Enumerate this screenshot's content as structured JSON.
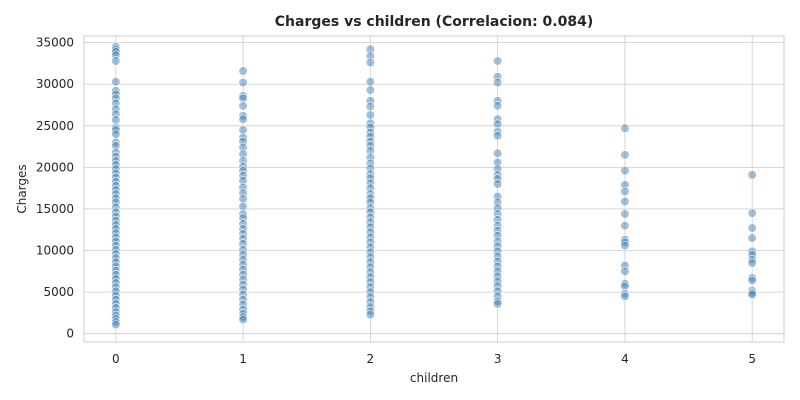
{
  "chart_data": {
    "type": "scatter",
    "title": "Charges vs children (Correlacion: 0.084)",
    "xlabel": "children",
    "ylabel": "Charges",
    "xlim": [
      -0.25,
      5.25
    ],
    "ylim": [
      -1000,
      35800
    ],
    "xticks": [
      0,
      1,
      2,
      3,
      4,
      5
    ],
    "yticks": [
      0,
      5000,
      10000,
      15000,
      20000,
      25000,
      30000,
      35000
    ],
    "grid": true,
    "point_color": "#4682b4",
    "series": [
      {
        "points": [
          [
            0,
            34500
          ],
          [
            0,
            34200
          ],
          [
            0,
            33900
          ],
          [
            0,
            33500
          ],
          [
            0,
            32800
          ],
          [
            0,
            30300
          ],
          [
            0,
            29200
          ],
          [
            0,
            28800
          ],
          [
            0,
            28300
          ],
          [
            0,
            27700
          ],
          [
            0,
            27000
          ],
          [
            0,
            26400
          ],
          [
            0,
            25700
          ],
          [
            0,
            24800
          ],
          [
            0,
            24500
          ],
          [
            0,
            24000
          ],
          [
            0,
            23000
          ],
          [
            0,
            22600
          ],
          [
            0,
            21800
          ],
          [
            0,
            21300
          ],
          [
            0,
            20800
          ],
          [
            0,
            20300
          ],
          [
            0,
            19800
          ],
          [
            0,
            19300
          ],
          [
            0,
            18800
          ],
          [
            0,
            18300
          ],
          [
            0,
            17800
          ],
          [
            0,
            17300
          ],
          [
            0,
            16800
          ],
          [
            0,
            16300
          ],
          [
            0,
            15800
          ],
          [
            0,
            15200
          ],
          [
            0,
            14600
          ],
          [
            0,
            14100
          ],
          [
            0,
            13600
          ],
          [
            0,
            13100
          ],
          [
            0,
            12600
          ],
          [
            0,
            12100
          ],
          [
            0,
            11600
          ],
          [
            0,
            11100
          ],
          [
            0,
            10600
          ],
          [
            0,
            10100
          ],
          [
            0,
            9600
          ],
          [
            0,
            9100
          ],
          [
            0,
            8600
          ],
          [
            0,
            8100
          ],
          [
            0,
            7600
          ],
          [
            0,
            7100
          ],
          [
            0,
            6600
          ],
          [
            0,
            6100
          ],
          [
            0,
            5600
          ],
          [
            0,
            5100
          ],
          [
            0,
            4600
          ],
          [
            0,
            4100
          ],
          [
            0,
            3600
          ],
          [
            0,
            3100
          ],
          [
            0,
            2600
          ],
          [
            0,
            2200
          ],
          [
            0,
            1800
          ],
          [
            0,
            1400
          ],
          [
            0,
            1100
          ],
          [
            1,
            31600
          ],
          [
            1,
            30200
          ],
          [
            1,
            28600
          ],
          [
            1,
            28300
          ],
          [
            1,
            27400
          ],
          [
            1,
            26200
          ],
          [
            1,
            25800
          ],
          [
            1,
            24500
          ],
          [
            1,
            23600
          ],
          [
            1,
            23100
          ],
          [
            1,
            22400
          ],
          [
            1,
            21600
          ],
          [
            1,
            20800
          ],
          [
            1,
            20100
          ],
          [
            1,
            19600
          ],
          [
            1,
            19000
          ],
          [
            1,
            18400
          ],
          [
            1,
            17600
          ],
          [
            1,
            16900
          ],
          [
            1,
            16200
          ],
          [
            1,
            15300
          ],
          [
            1,
            14400
          ],
          [
            1,
            13900
          ],
          [
            1,
            13200
          ],
          [
            1,
            12600
          ],
          [
            1,
            12000
          ],
          [
            1,
            11400
          ],
          [
            1,
            10800
          ],
          [
            1,
            10100
          ],
          [
            1,
            9500
          ],
          [
            1,
            8900
          ],
          [
            1,
            8300
          ],
          [
            1,
            7700
          ],
          [
            1,
            7100
          ],
          [
            1,
            6500
          ],
          [
            1,
            5900
          ],
          [
            1,
            5300
          ],
          [
            1,
            4700
          ],
          [
            1,
            4100
          ],
          [
            1,
            3500
          ],
          [
            1,
            2900
          ],
          [
            1,
            2400
          ],
          [
            1,
            2000
          ],
          [
            1,
            1700
          ],
          [
            2,
            34200
          ],
          [
            2,
            33400
          ],
          [
            2,
            32600
          ],
          [
            2,
            30300
          ],
          [
            2,
            29300
          ],
          [
            2,
            28000
          ],
          [
            2,
            27300
          ],
          [
            2,
            26300
          ],
          [
            2,
            25300
          ],
          [
            2,
            24800
          ],
          [
            2,
            24200
          ],
          [
            2,
            23700
          ],
          [
            2,
            23100
          ],
          [
            2,
            22600
          ],
          [
            2,
            22000
          ],
          [
            2,
            21200
          ],
          [
            2,
            20500
          ],
          [
            2,
            19900
          ],
          [
            2,
            19200
          ],
          [
            2,
            18700
          ],
          [
            2,
            18100
          ],
          [
            2,
            17500
          ],
          [
            2,
            16800
          ],
          [
            2,
            16300
          ],
          [
            2,
            15800
          ],
          [
            2,
            15100
          ],
          [
            2,
            14600
          ],
          [
            2,
            14000
          ],
          [
            2,
            13400
          ],
          [
            2,
            12800
          ],
          [
            2,
            12200
          ],
          [
            2,
            11600
          ],
          [
            2,
            11000
          ],
          [
            2,
            10400
          ],
          [
            2,
            9800
          ],
          [
            2,
            9200
          ],
          [
            2,
            8600
          ],
          [
            2,
            8000
          ],
          [
            2,
            7400
          ],
          [
            2,
            6800
          ],
          [
            2,
            6200
          ],
          [
            2,
            5600
          ],
          [
            2,
            5000
          ],
          [
            2,
            4400
          ],
          [
            2,
            3800
          ],
          [
            2,
            3200
          ],
          [
            2,
            2700
          ],
          [
            2,
            2300
          ],
          [
            3,
            32800
          ],
          [
            3,
            30900
          ],
          [
            3,
            30200
          ],
          [
            3,
            28000
          ],
          [
            3,
            27400
          ],
          [
            3,
            25800
          ],
          [
            3,
            25200
          ],
          [
            3,
            24300
          ],
          [
            3,
            23800
          ],
          [
            3,
            21700
          ],
          [
            3,
            20600
          ],
          [
            3,
            19800
          ],
          [
            3,
            19100
          ],
          [
            3,
            18600
          ],
          [
            3,
            18000
          ],
          [
            3,
            16500
          ],
          [
            3,
            15800
          ],
          [
            3,
            15100
          ],
          [
            3,
            14400
          ],
          [
            3,
            13700
          ],
          [
            3,
            13000
          ],
          [
            3,
            12400
          ],
          [
            3,
            11800
          ],
          [
            3,
            11100
          ],
          [
            3,
            10500
          ],
          [
            3,
            9900
          ],
          [
            3,
            9300
          ],
          [
            3,
            8700
          ],
          [
            3,
            8100
          ],
          [
            3,
            7500
          ],
          [
            3,
            6900
          ],
          [
            3,
            6300
          ],
          [
            3,
            5700
          ],
          [
            3,
            5100
          ],
          [
            3,
            4500
          ],
          [
            3,
            3900
          ],
          [
            3,
            3600
          ],
          [
            4,
            24700
          ],
          [
            4,
            21500
          ],
          [
            4,
            19600
          ],
          [
            4,
            17900
          ],
          [
            4,
            17100
          ],
          [
            4,
            15900
          ],
          [
            4,
            14400
          ],
          [
            4,
            13000
          ],
          [
            4,
            11300
          ],
          [
            4,
            11000
          ],
          [
            4,
            10600
          ],
          [
            4,
            8200
          ],
          [
            4,
            7500
          ],
          [
            4,
            6000
          ],
          [
            4,
            5700
          ],
          [
            4,
            4800
          ],
          [
            4,
            4500
          ],
          [
            5,
            19100
          ],
          [
            5,
            14500
          ],
          [
            5,
            12700
          ],
          [
            5,
            11500
          ],
          [
            5,
            9900
          ],
          [
            5,
            9500
          ],
          [
            5,
            8900
          ],
          [
            5,
            8500
          ],
          [
            5,
            6700
          ],
          [
            5,
            6400
          ],
          [
            5,
            5200
          ],
          [
            5,
            4900
          ],
          [
            5,
            4700
          ]
        ]
      }
    ]
  }
}
